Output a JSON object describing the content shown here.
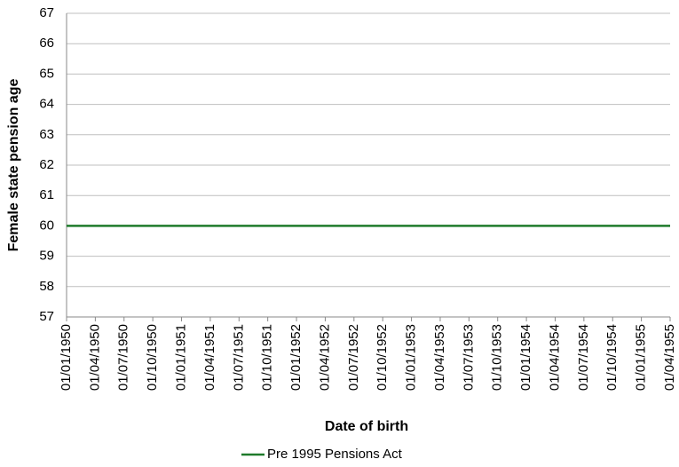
{
  "chart_data": {
    "type": "line",
    "x_label": "Date of birth",
    "y_label": "Female state pension age",
    "categories": [
      "01/01/1950",
      "01/04/1950",
      "01/07/1950",
      "01/10/1950",
      "01/01/1951",
      "01/04/1951",
      "01/07/1951",
      "01/10/1951",
      "01/01/1952",
      "01/04/1952",
      "01/07/1952",
      "01/10/1952",
      "01/01/1953",
      "01/04/1953",
      "01/07/1953",
      "01/10/1953",
      "01/01/1954",
      "01/04/1954",
      "01/07/1954",
      "01/10/1954",
      "01/01/1955",
      "01/04/1955"
    ],
    "series": [
      {
        "name": "Pre 1995 Pensions Act",
        "color": "#1e7a2a",
        "values": [
          60,
          60,
          60,
          60,
          60,
          60,
          60,
          60,
          60,
          60,
          60,
          60,
          60,
          60,
          60,
          60,
          60,
          60,
          60,
          60,
          60,
          60
        ]
      }
    ],
    "ylim": [
      57,
      67
    ],
    "yticks": [
      57,
      58,
      59,
      60,
      61,
      62,
      63,
      64,
      65,
      66,
      67
    ],
    "grid": true,
    "legend": "bottom"
  }
}
